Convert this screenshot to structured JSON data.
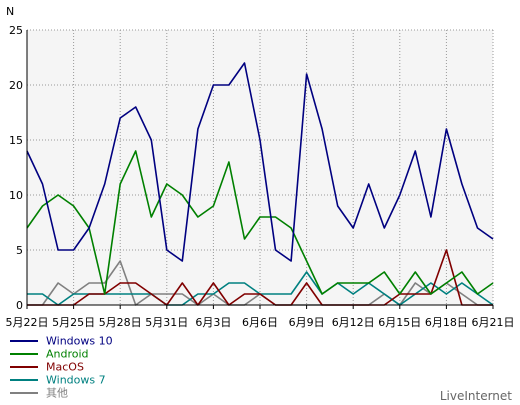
{
  "brand": "LiveInternet",
  "chart_data": {
    "type": "line",
    "ylabel": "N",
    "ylim": [
      0,
      25
    ],
    "y_ticks": [
      0,
      5,
      10,
      15,
      20,
      25
    ],
    "grid": true,
    "legend_position": "bottom-left",
    "categories": [
      "5月22日",
      "5月23日",
      "5月24日",
      "5月25日",
      "5月26日",
      "5月27日",
      "5月28日",
      "5月29日",
      "5月30日",
      "5月31日",
      "6月1日",
      "6月2日",
      "6月3日",
      "6月4日",
      "6月5日",
      "6月6日",
      "6月7日",
      "6月8日",
      "6月9日",
      "6月10日",
      "6月11日",
      "6月12日",
      "6月13日",
      "6月14日",
      "6月15日",
      "6月16日",
      "6月17日",
      "6月18日",
      "6月19日",
      "6月20日",
      "6月21日"
    ],
    "x_tick_labels": [
      "5月22日",
      "5月25日",
      "5月28日",
      "5月31日",
      "6月3日",
      "6月6日",
      "6月9日",
      "6月12日",
      "6月15日",
      "6月18日",
      "6月21日"
    ],
    "series": [
      {
        "name": "Windows 10",
        "color": "#000080",
        "values": [
          14,
          11,
          5,
          5,
          7,
          11,
          17,
          18,
          15,
          5,
          4,
          16,
          20,
          20,
          22,
          15,
          5,
          4,
          21,
          16,
          9,
          7,
          11,
          7,
          10,
          14,
          8,
          16,
          11,
          7,
          6
        ]
      },
      {
        "name": "Android",
        "color": "#008000",
        "values": [
          7,
          9,
          10,
          9,
          7,
          1,
          11,
          14,
          8,
          11,
          10,
          8,
          9,
          13,
          6,
          8,
          8,
          7,
          4,
          1,
          2,
          2,
          2,
          3,
          1,
          3,
          1,
          2,
          3,
          1,
          2
        ]
      },
      {
        "name": "MacOS",
        "color": "#800000",
        "values": [
          0,
          0,
          0,
          0,
          1,
          1,
          2,
          2,
          1,
          0,
          2,
          0,
          2,
          0,
          1,
          1,
          0,
          0,
          2,
          0,
          0,
          0,
          0,
          0,
          1,
          1,
          1,
          5,
          0,
          0,
          0
        ]
      },
      {
        "name": "Windows 7",
        "color": "#008080",
        "values": [
          1,
          1,
          0,
          1,
          1,
          1,
          1,
          1,
          1,
          0,
          0,
          1,
          1,
          2,
          2,
          1,
          1,
          1,
          3,
          1,
          2,
          1,
          2,
          1,
          0,
          1,
          2,
          1,
          2,
          1,
          0
        ]
      },
      {
        "name": "其他",
        "color": "#808080",
        "values": [
          0,
          0,
          2,
          1,
          2,
          2,
          4,
          0,
          1,
          1,
          1,
          0,
          1,
          0,
          0,
          1,
          0,
          0,
          0,
          0,
          0,
          0,
          0,
          1,
          0,
          2,
          1,
          2,
          1,
          0,
          0
        ]
      }
    ]
  }
}
